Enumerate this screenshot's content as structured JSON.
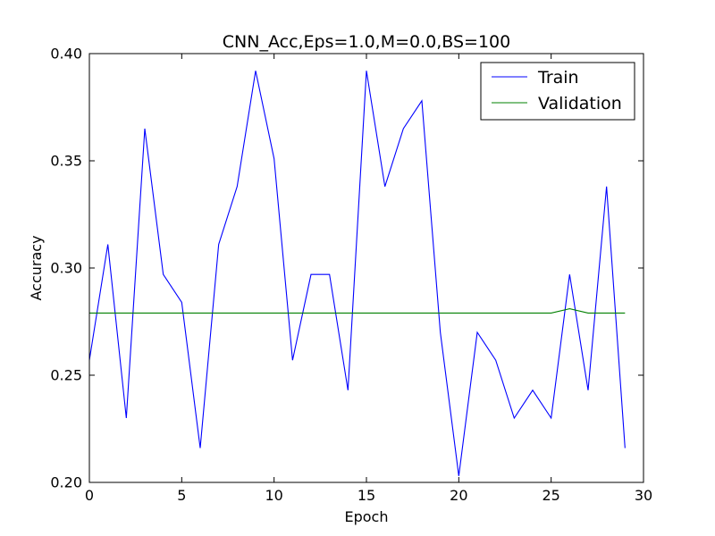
{
  "chart_data": {
    "type": "line",
    "title": "CNN_Acc,Eps=1.0,M=0.0,BS=100",
    "xlabel": "Epoch",
    "ylabel": "Accuracy",
    "xlim": [
      0,
      30
    ],
    "ylim": [
      0.2,
      0.4
    ],
    "xticks": [
      0,
      5,
      10,
      15,
      20,
      25,
      30
    ],
    "xtick_labels": [
      "0",
      "5",
      "10",
      "15",
      "20",
      "25",
      "30"
    ],
    "yticks": [
      0.2,
      0.25,
      0.3,
      0.35,
      0.4
    ],
    "ytick_labels": [
      "0.20",
      "0.25",
      "0.30",
      "0.35",
      "0.40"
    ],
    "grid": false,
    "legend_position": "top-right",
    "x": [
      0,
      1,
      2,
      3,
      4,
      5,
      6,
      7,
      8,
      9,
      10,
      11,
      12,
      13,
      14,
      15,
      16,
      17,
      18,
      19,
      20,
      21,
      22,
      23,
      24,
      25,
      26,
      27,
      28,
      29
    ],
    "series": [
      {
        "name": "Train",
        "color": "#0000ff",
        "values": [
          0.257,
          0.311,
          0.23,
          0.365,
          0.297,
          0.284,
          0.216,
          0.311,
          0.338,
          0.392,
          0.351,
          0.257,
          0.297,
          0.297,
          0.243,
          0.392,
          0.338,
          0.365,
          0.378,
          0.27,
          0.203,
          0.27,
          0.257,
          0.23,
          0.243,
          0.23,
          0.297,
          0.243,
          0.338,
          0.216
        ]
      },
      {
        "name": "Validation",
        "color": "#008000",
        "values": [
          0.279,
          0.279,
          0.279,
          0.279,
          0.279,
          0.279,
          0.279,
          0.279,
          0.279,
          0.279,
          0.279,
          0.279,
          0.279,
          0.279,
          0.279,
          0.279,
          0.279,
          0.279,
          0.279,
          0.279,
          0.279,
          0.279,
          0.279,
          0.279,
          0.279,
          0.279,
          0.281,
          0.279,
          0.279,
          0.279
        ]
      }
    ]
  }
}
